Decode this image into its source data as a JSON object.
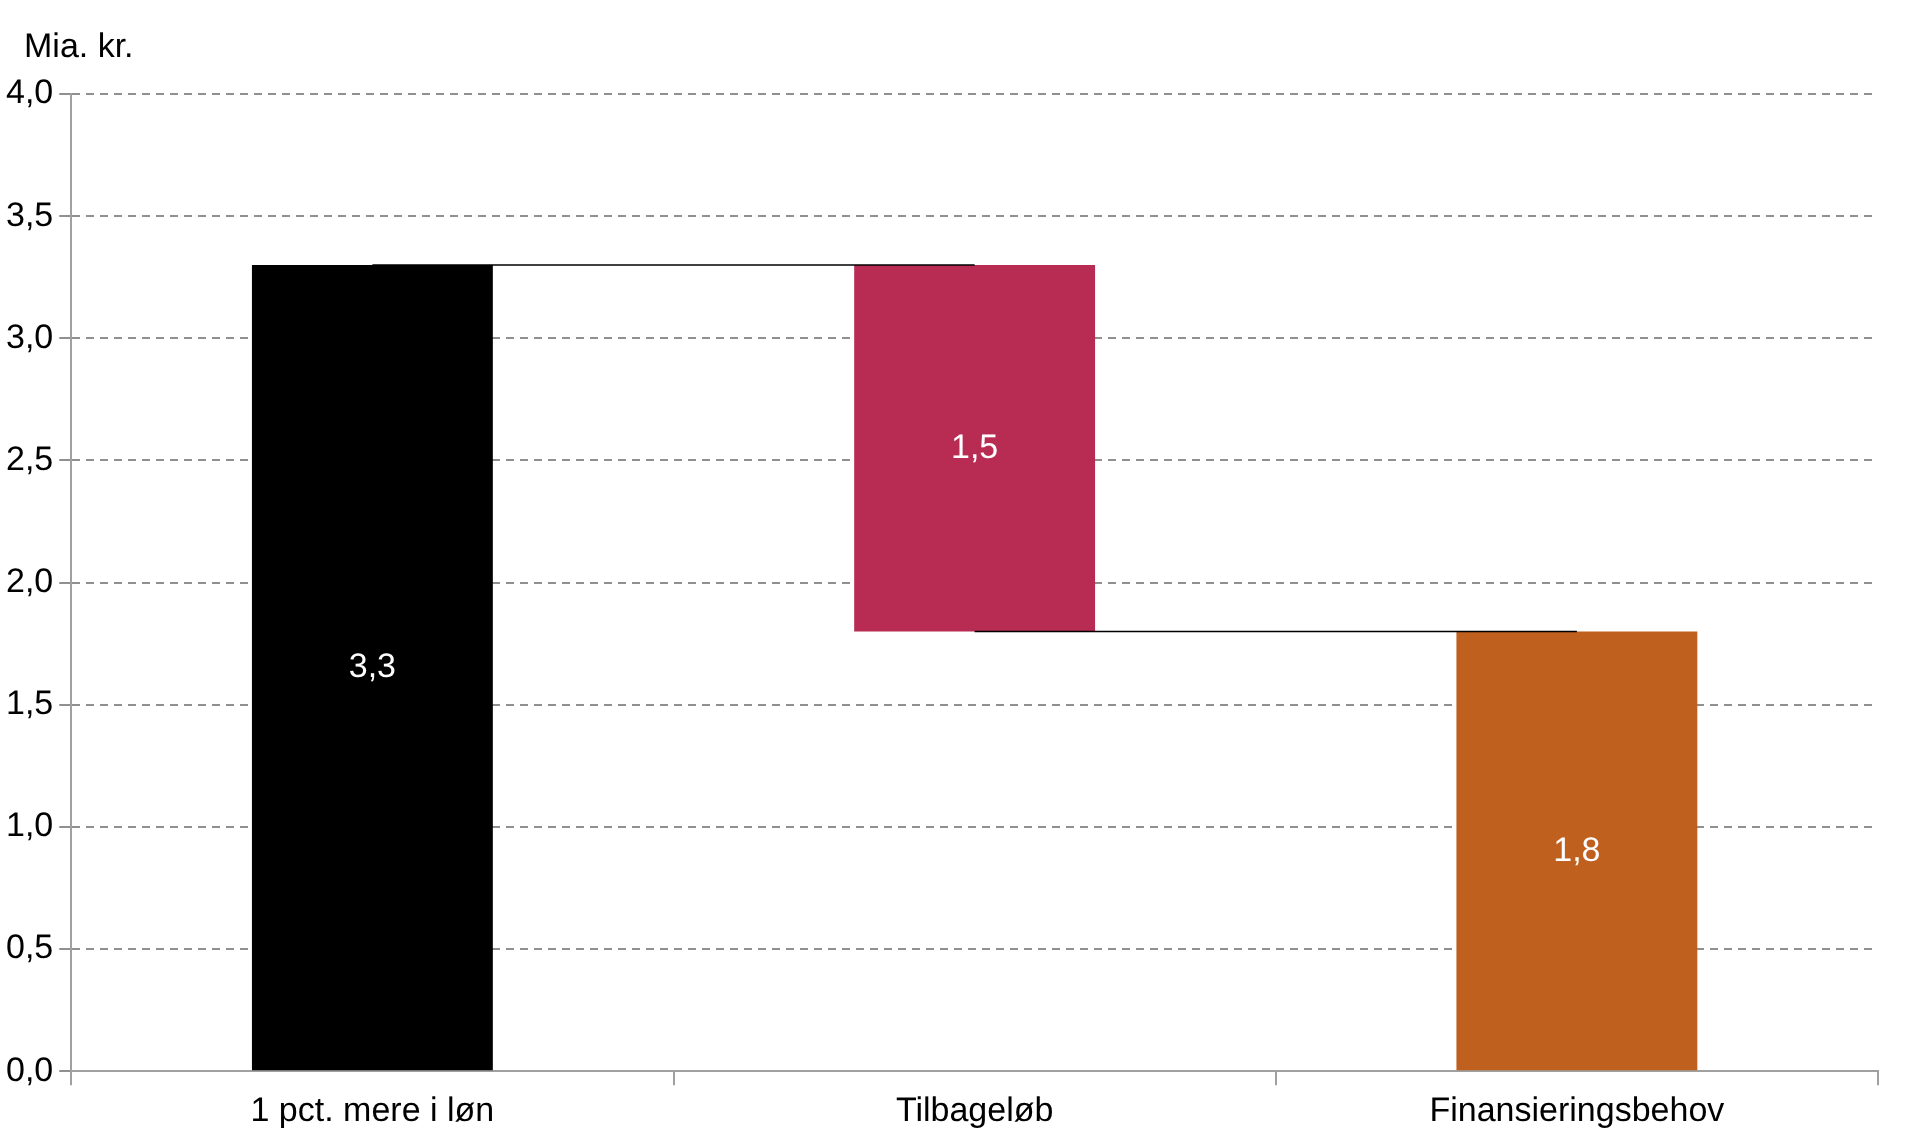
{
  "chart_data": {
    "type": "bar",
    "ylabel": "Mia. kr.",
    "categories": [
      "1 pct. mere i løn",
      "Tilbageløb",
      "Finansieringsbehov"
    ],
    "series": [
      {
        "values": [
          3.3,
          1.5,
          1.8
        ],
        "base": [
          0,
          1.8,
          0
        ],
        "colors": [
          "#000000",
          "#b82c54",
          "#c0601e"
        ],
        "value_labels": [
          "3,3",
          "1,5",
          "1,8"
        ]
      },
      {
        "type": "line",
        "values": [
          3.3,
          3.3,
          null
        ],
        "color": "#000000"
      },
      {
        "type": "line",
        "values": [
          null,
          1.8,
          1.8
        ],
        "color": "#000000"
      }
    ],
    "ylim": [
      0,
      4
    ],
    "yticks": [
      {
        "value": 0,
        "label": "0,0"
      },
      {
        "value": 0.5,
        "label": "0,5"
      },
      {
        "value": 1,
        "label": "1,0"
      },
      {
        "value": 1.5,
        "label": "1,5"
      },
      {
        "value": 2,
        "label": "2,0"
      },
      {
        "value": 2.5,
        "label": "2,5"
      },
      {
        "value": 3,
        "label": "3,0"
      },
      {
        "value": 3.5,
        "label": "3,5"
      },
      {
        "value": 4,
        "label": "4,0"
      }
    ],
    "grid": "y",
    "legend": false,
    "marker": "none"
  }
}
